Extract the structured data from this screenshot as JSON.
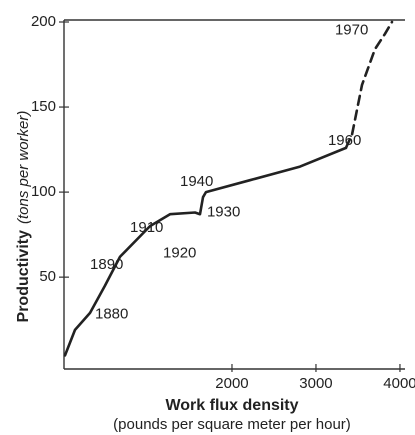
{
  "chart_data": {
    "type": "line",
    "ylabel": "Productivity",
    "ylabel_note": "(tons per worker)",
    "xlabel": "Work flux density",
    "xlabel_note": "(pounds per square meter per hour)",
    "xlim": [
      0,
      4060
    ],
    "ylim": [
      -4,
      200
    ],
    "xticks": [
      2000,
      3000,
      4000
    ],
    "yticks": [
      50,
      100,
      150,
      200
    ],
    "color": "#222222",
    "series": [
      {
        "style": "solid",
        "x": [
          12,
          131,
          310,
          488,
          667,
          1024,
          1262,
          1560,
          1619,
          1655,
          1690,
          2214,
          2810,
          3357
        ],
        "values": [
          4,
          19,
          29,
          45,
          62,
          80,
          87,
          88,
          87,
          97,
          100,
          107,
          115,
          126
        ]
      },
      {
        "style": "dashed",
        "x": [
          3357,
          3430,
          3548,
          3702,
          3821,
          3905
        ],
        "values": [
          126,
          134,
          163,
          184,
          193,
          200
        ]
      }
    ],
    "annotations": [
      {
        "text": "1880",
        "x": 369,
        "y": 28
      },
      {
        "text": "1890",
        "x": 310,
        "y": 57
      },
      {
        "text": "1910",
        "x": 786,
        "y": 79
      },
      {
        "text": "1920",
        "x": 1179,
        "y": 64
      },
      {
        "text": "1930",
        "x": 1702,
        "y": 88
      },
      {
        "text": "1940",
        "x": 1381,
        "y": 106
      },
      {
        "text": "1960",
        "x": 3143,
        "y": 130
      },
      {
        "text": "1970",
        "x": 3226,
        "y": 195
      }
    ]
  }
}
